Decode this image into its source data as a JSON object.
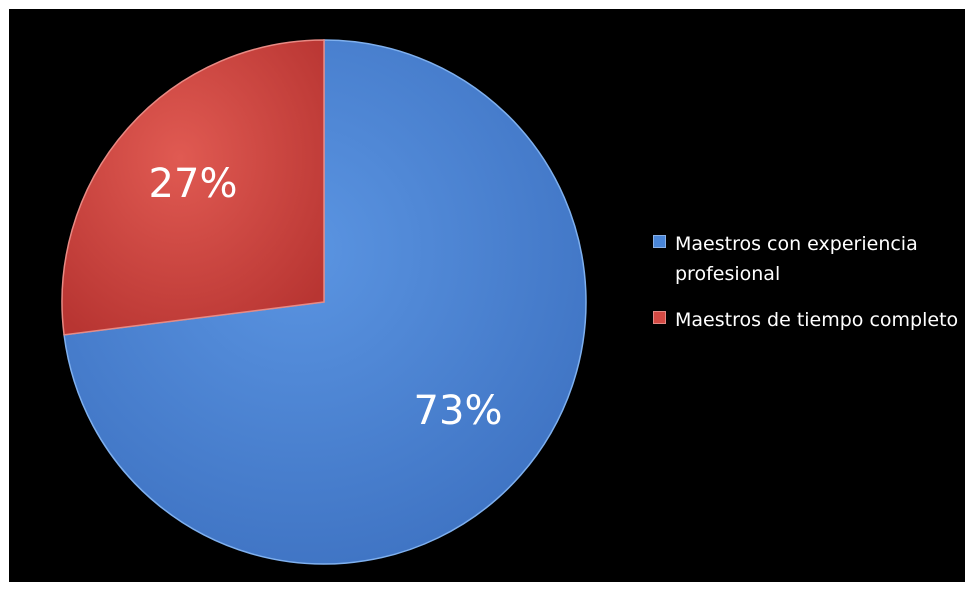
{
  "chart_data": {
    "type": "pie",
    "title": "",
    "slices": [
      {
        "label": "Maestros con experiencia profesional",
        "value": 73,
        "display": "73%",
        "color": "#4a86d8"
      },
      {
        "label": "Maestros de tiempo completo",
        "value": 27,
        "display": "27%",
        "color": "#d44a44"
      }
    ],
    "legend_position": "right"
  }
}
